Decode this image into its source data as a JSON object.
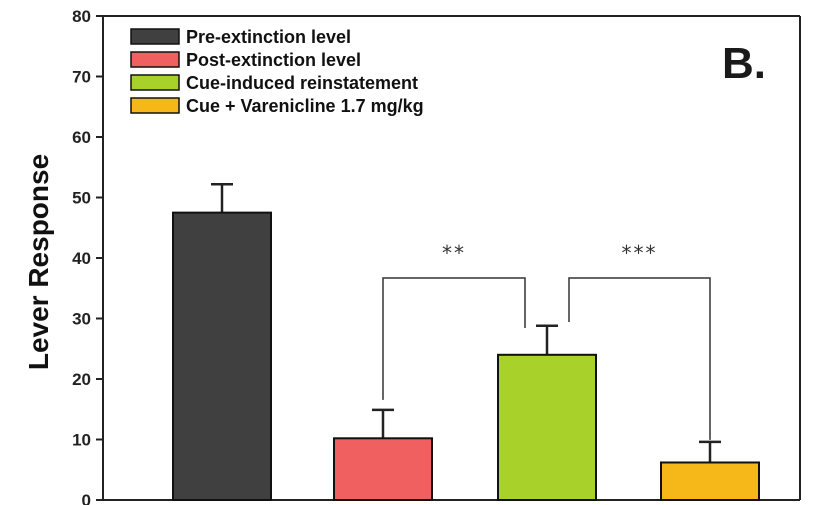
{
  "chart_data": {
    "type": "bar",
    "panel_label": "B.",
    "ylabel": "Lever Response",
    "ylim": [
      0,
      80
    ],
    "yticks": [
      0,
      10,
      20,
      30,
      40,
      50,
      60,
      70,
      80
    ],
    "legend_position": "top-left",
    "bars": [
      {
        "name": "Pre-extinction level",
        "value": 47.5,
        "error": 4.7,
        "color": "#404040"
      },
      {
        "name": "Post-extinction level",
        "value": 10.2,
        "error": 4.7,
        "color": "#f06060"
      },
      {
        "name": "Cue-induced reinstatement",
        "value": 24.0,
        "error": 4.8,
        "color": "#a8d22a"
      },
      {
        "name": "Cue + Varenicline 1.7 mg/kg",
        "value": 6.2,
        "error": 3.4,
        "color": "#f5b818"
      }
    ],
    "significance": [
      {
        "from": 1,
        "to": 2,
        "label": "**"
      },
      {
        "from": 2,
        "to": 3,
        "label": "***"
      }
    ]
  }
}
